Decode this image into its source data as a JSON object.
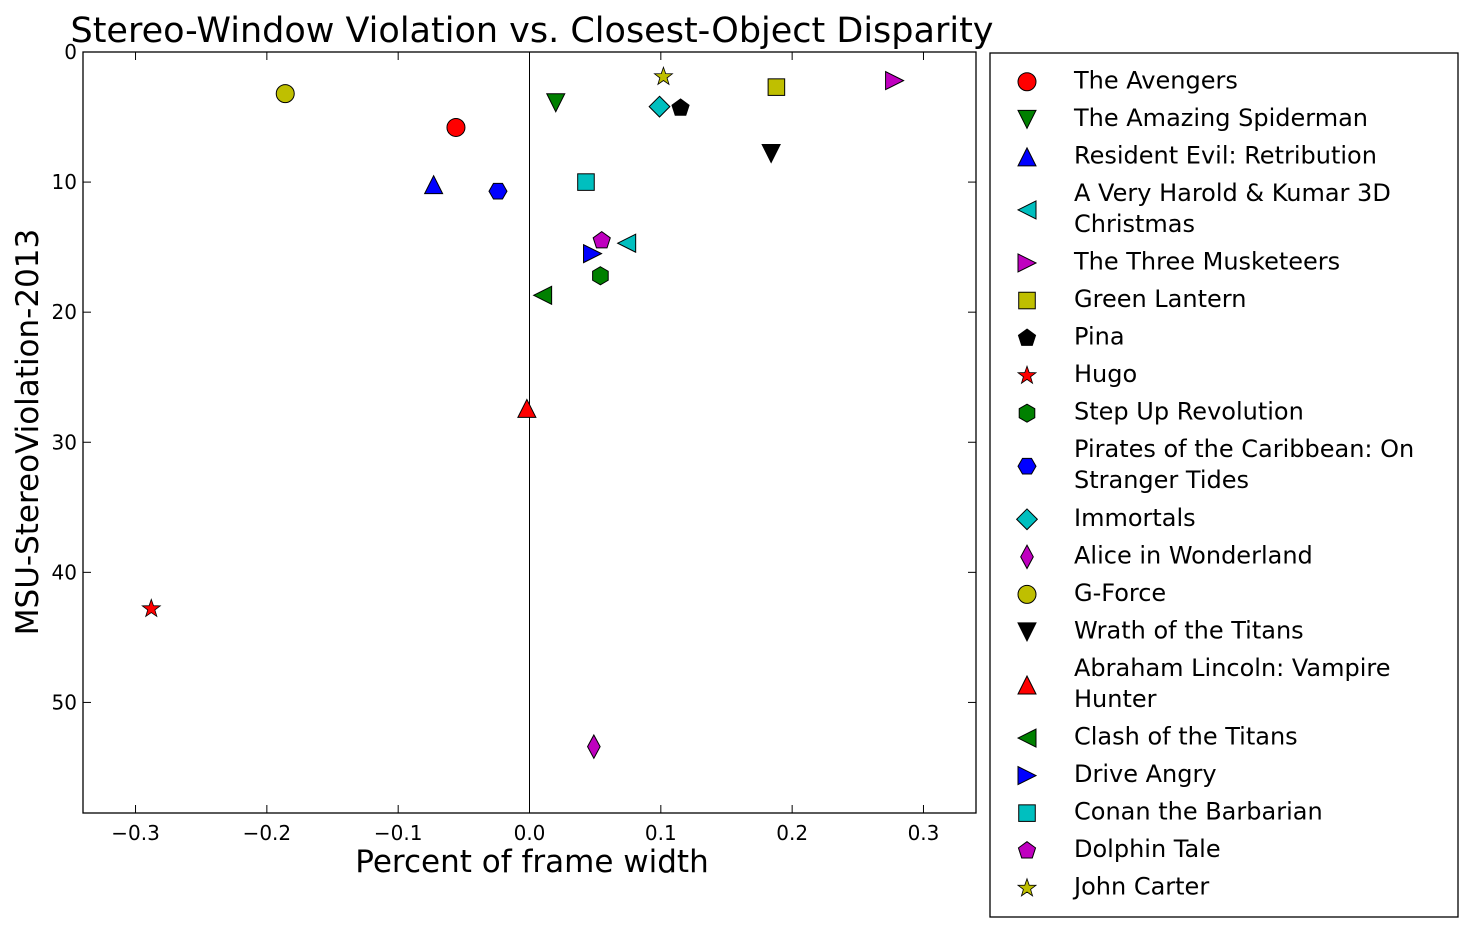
{
  "chart_data": {
    "type": "scatter",
    "title": "Stereo-Window Violation vs. Closest-Object Disparity",
    "xlabel": "Percent of frame width",
    "ylabel": "MSU-StereoViolation-2013",
    "xlim": [
      -0.34,
      0.34
    ],
    "ylim": [
      58.5,
      0
    ],
    "y_inverted": true,
    "x_ticks": [
      -0.3,
      -0.2,
      -0.1,
      0.0,
      0.1,
      0.2,
      0.3
    ],
    "x_tick_labels": [
      "−0.3",
      "−0.2",
      "−0.1",
      "0.0",
      "0.1",
      "0.2",
      "0.3"
    ],
    "y_ticks": [
      0,
      10,
      20,
      30,
      40,
      50
    ],
    "y_tick_labels": [
      "0",
      "10",
      "20",
      "30",
      "40",
      "50"
    ],
    "zero_line_x": 0.0,
    "grid": false,
    "legend_placement": "outside-right",
    "series": [
      {
        "name": "The Avengers",
        "x": -0.056,
        "y": 5.8,
        "marker": "circle",
        "color": "#ff0000"
      },
      {
        "name": "The Amazing Spiderman",
        "x": 0.02,
        "y": 3.9,
        "marker": "triangle-down",
        "color": "#008000"
      },
      {
        "name": "Resident Evil: Retribution",
        "x": -0.073,
        "y": 10.2,
        "marker": "triangle-up",
        "color": "#0000ff"
      },
      {
        "name": "A Very Harold & Kumar 3D Christmas",
        "x": 0.074,
        "y": 14.7,
        "marker": "triangle-left",
        "color": "#00bfbf"
      },
      {
        "name": "The Three Musketeers",
        "x": 0.278,
        "y": 2.2,
        "marker": "triangle-right",
        "color": "#bf00bf"
      },
      {
        "name": "Green Lantern",
        "x": 0.188,
        "y": 2.7,
        "marker": "square",
        "color": "#bfbf00"
      },
      {
        "name": "Pina",
        "x": 0.115,
        "y": 4.3,
        "marker": "pentagon",
        "color": "#000000"
      },
      {
        "name": "Hugo",
        "x": -0.288,
        "y": 42.8,
        "marker": "star",
        "color": "#ff0000"
      },
      {
        "name": "Step Up Revolution",
        "x": 0.054,
        "y": 17.2,
        "marker": "hexagon",
        "color": "#008000"
      },
      {
        "name": "Pirates of the Caribbean: On Stranger Tides",
        "x": -0.024,
        "y": 10.7,
        "marker": "hexagon-flat",
        "color": "#0000ff"
      },
      {
        "name": "Immortals",
        "x": 0.099,
        "y": 4.2,
        "marker": "diamond",
        "color": "#00bfbf"
      },
      {
        "name": "Alice in Wonderland",
        "x": 0.049,
        "y": 53.4,
        "marker": "thin-diamond",
        "color": "#bf00bf"
      },
      {
        "name": "G-Force",
        "x": -0.186,
        "y": 3.2,
        "marker": "circle",
        "color": "#bfbf00"
      },
      {
        "name": "Wrath of the Titans",
        "x": 0.184,
        "y": 7.8,
        "marker": "triangle-down",
        "color": "#000000"
      },
      {
        "name": "Abraham Lincoln: Vampire Hunter",
        "x": -0.002,
        "y": 27.4,
        "marker": "triangle-up",
        "color": "#ff0000"
      },
      {
        "name": "Clash of the Titans",
        "x": 0.01,
        "y": 18.7,
        "marker": "triangle-left",
        "color": "#008000"
      },
      {
        "name": "Drive Angry",
        "x": 0.048,
        "y": 15.5,
        "marker": "triangle-right",
        "color": "#0000ff"
      },
      {
        "name": "Conan the Barbarian",
        "x": 0.043,
        "y": 10.0,
        "marker": "square",
        "color": "#00bfbf"
      },
      {
        "name": "Dolphin Tale",
        "x": 0.055,
        "y": 14.5,
        "marker": "pentagon",
        "color": "#bf00bf"
      },
      {
        "name": "John Carter",
        "x": 0.102,
        "y": 1.9,
        "marker": "star",
        "color": "#bfbf00"
      }
    ]
  }
}
